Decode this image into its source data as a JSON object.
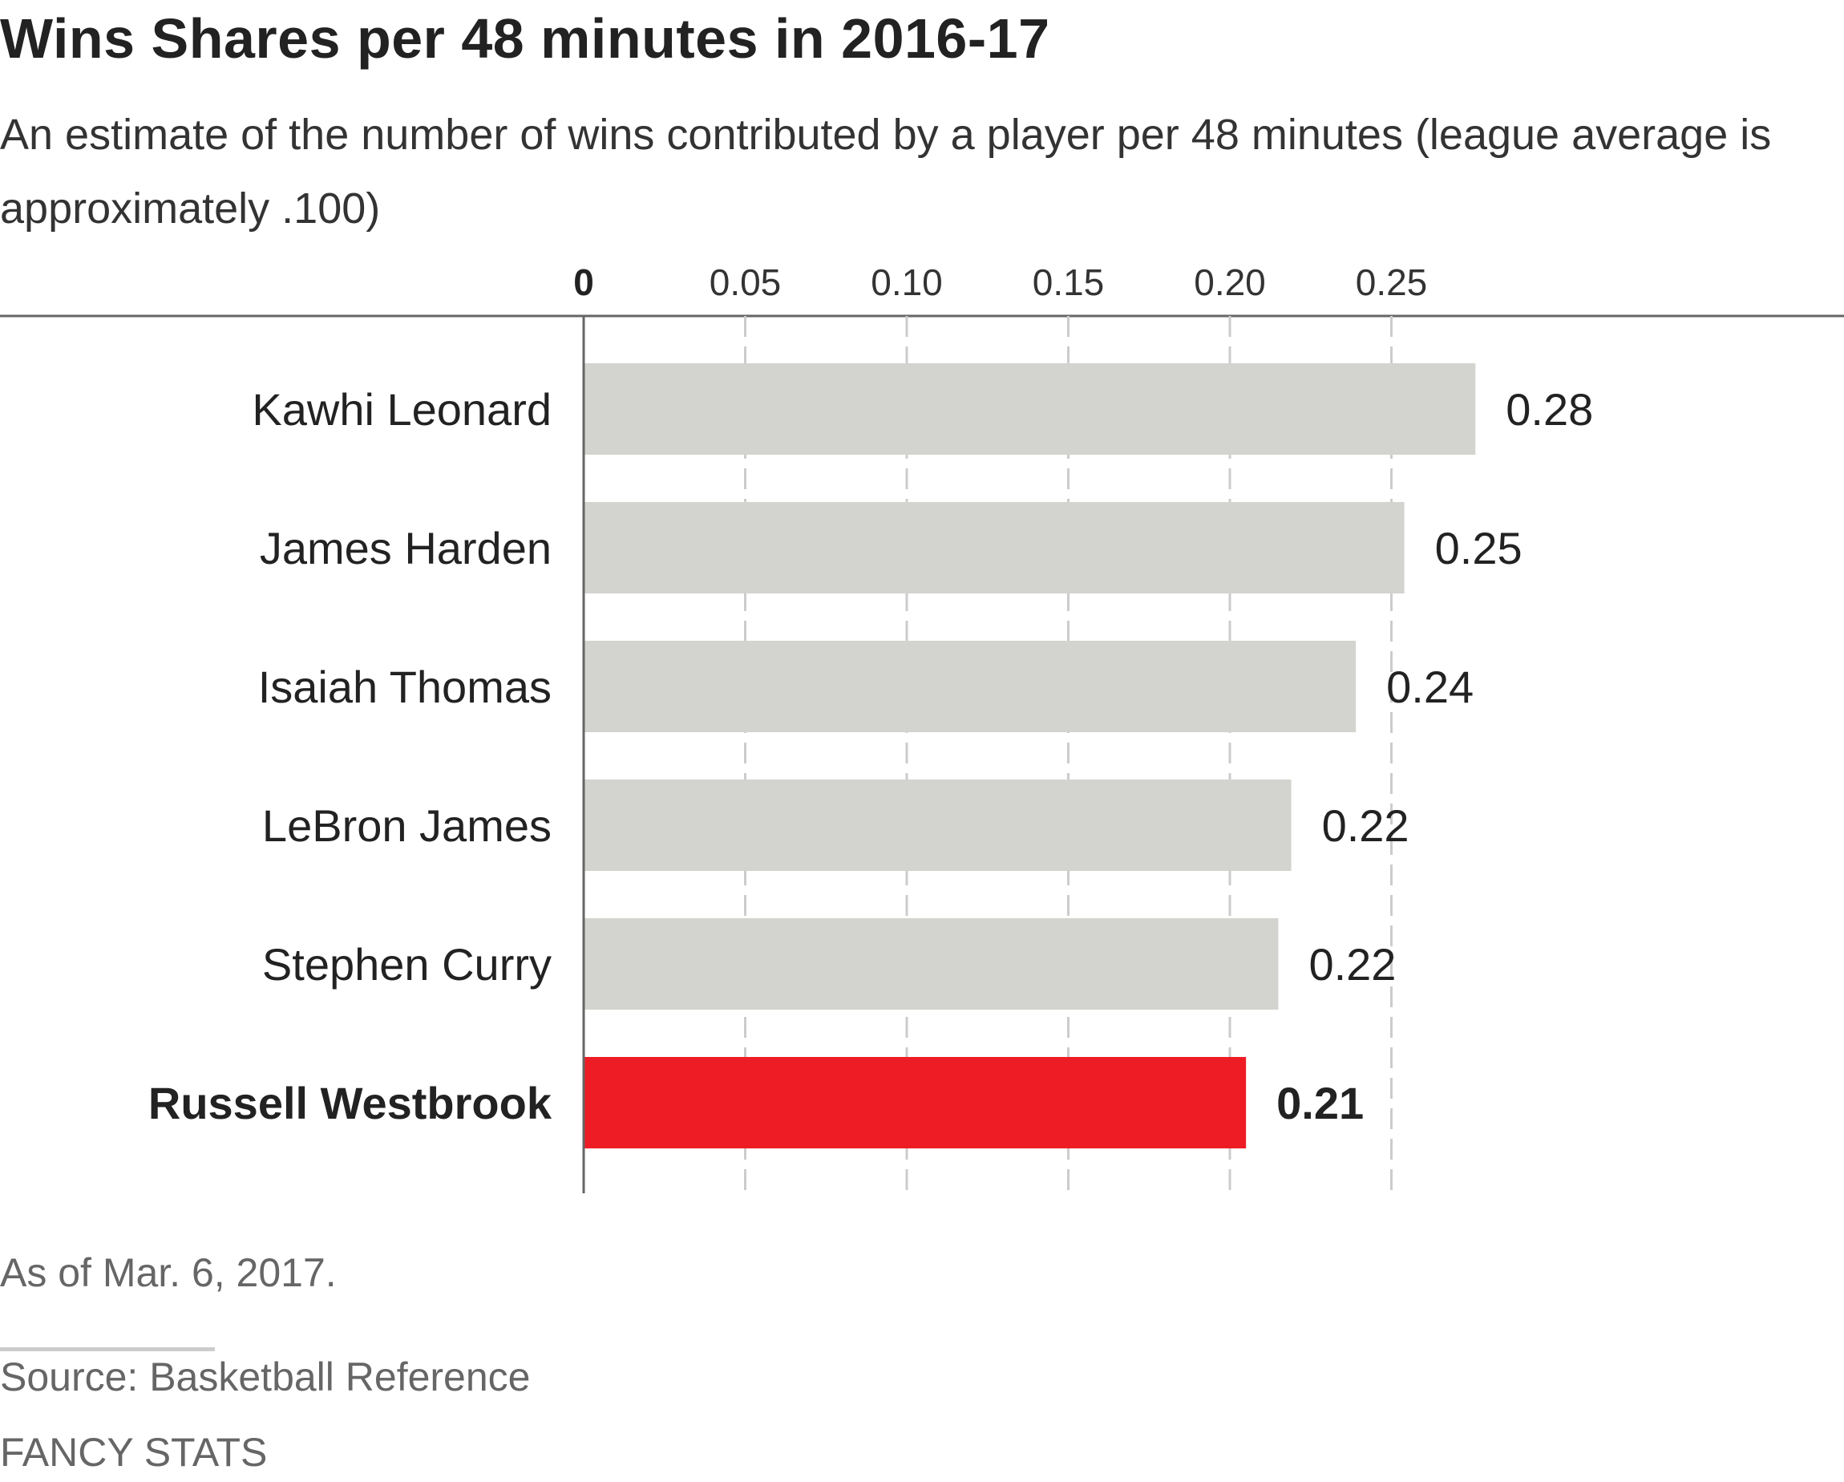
{
  "header": {
    "title": "Wins Shares per 48 minutes in 2016-17",
    "subtitle": "An estimate of the number of wins contributed by a player per 48 minutes (league average is approximately .100)"
  },
  "footer": {
    "note": "As of Mar. 6, 2017.",
    "source": "Source: Basketball Reference",
    "section": "FANCY STATS"
  },
  "colors": {
    "bar_default": "#d3d3cf",
    "bar_highlight": "#ee1d25",
    "gridline": "#cccccc",
    "axis": "#666666"
  },
  "chart_data": {
    "type": "bar",
    "orientation": "horizontal",
    "title": "Wins Shares per 48 minutes in 2016-17",
    "subtitle": "An estimate of the number of wins contributed by a player per 48 minutes (league average is approximately .100)",
    "categories": [
      "Kawhi Leonard",
      "James Harden",
      "Isaiah Thomas",
      "LeBron James",
      "Stephen Curry",
      "Russell Westbrook"
    ],
    "values": [
      0.276,
      0.254,
      0.239,
      0.219,
      0.215,
      0.205
    ],
    "value_labels": [
      "0.28",
      "0.25",
      "0.24",
      "0.22",
      "0.22",
      "0.21"
    ],
    "highlight": "Russell Westbrook",
    "xlim": [
      0,
      0.28
    ],
    "xticks": [
      0,
      0.05,
      0.1,
      0.15,
      0.2,
      0.25
    ],
    "xtick_labels": [
      "0",
      "0.05",
      "0.10",
      "0.15",
      "0.20",
      "0.25"
    ],
    "xlabel": "",
    "ylabel": "",
    "grid": true,
    "legend": "none"
  }
}
